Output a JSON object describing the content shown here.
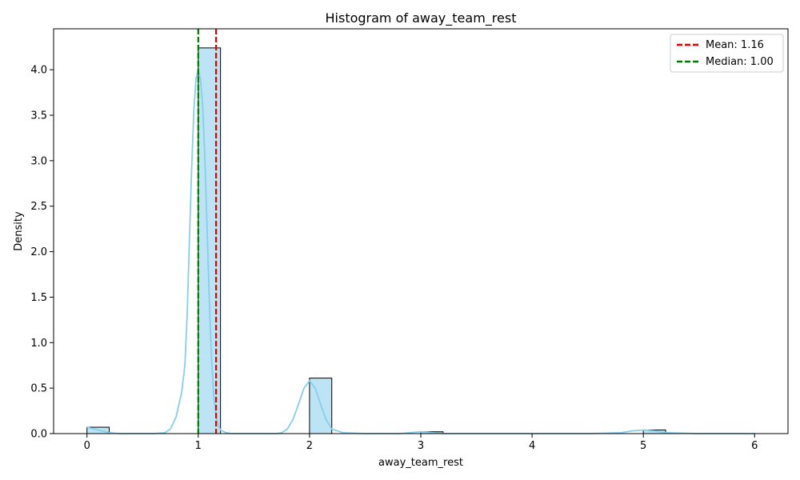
{
  "chart_data": {
    "type": "bar",
    "title": "Histogram of away_team_rest",
    "xlabel": "away_team_rest",
    "ylabel": "Density",
    "xlim": [
      -0.3,
      6.3
    ],
    "ylim": [
      0,
      4.45
    ],
    "xticks": [
      0,
      1,
      2,
      3,
      4,
      5,
      6
    ],
    "xtick_labels": [
      "0",
      "1",
      "2",
      "3",
      "4",
      "5",
      "6"
    ],
    "yticks": [
      0,
      0.5,
      1.0,
      1.5,
      2.0,
      2.5,
      3.0,
      3.5,
      4.0
    ],
    "ytick_labels": [
      "0.0",
      "0.5",
      "1.0",
      "1.5",
      "2.0",
      "2.5",
      "3.0",
      "3.5",
      "4.0"
    ],
    "grid": false,
    "legend_position": "top-right",
    "bars": [
      {
        "x0": 0.0,
        "x1": 0.2,
        "value": 0.07
      },
      {
        "x0": 1.0,
        "x1": 1.2,
        "value": 4.24
      },
      {
        "x0": 2.0,
        "x1": 2.2,
        "value": 0.61
      },
      {
        "x0": 3.0,
        "x1": 3.2,
        "value": 0.02
      },
      {
        "x0": 5.0,
        "x1": 5.2,
        "value": 0.04
      }
    ],
    "kde": {
      "x": [
        0,
        0.1,
        0.2,
        0.3,
        0.5,
        0.6,
        0.7,
        0.75,
        0.8,
        0.85,
        0.88,
        0.9,
        0.92,
        0.94,
        0.96,
        0.98,
        1.0,
        1.02,
        1.04,
        1.06,
        1.08,
        1.1,
        1.12,
        1.14,
        1.16,
        1.18,
        1.2,
        1.25,
        1.3,
        1.5,
        1.7,
        1.75,
        1.8,
        1.85,
        1.9,
        1.95,
        2.0,
        2.05,
        2.1,
        2.15,
        2.2,
        2.3,
        2.5,
        2.8,
        2.9,
        3.0,
        3.1,
        3.2,
        3.5,
        4.0,
        4.5,
        4.8,
        4.9,
        5.0,
        5.1,
        5.2,
        5.5,
        6.0
      ],
      "y": [
        0.07,
        0.04,
        0.01,
        0.0,
        0.0,
        0.0,
        0.01,
        0.05,
        0.18,
        0.45,
        0.75,
        1.3,
        2.1,
        2.9,
        3.55,
        3.9,
        4.0,
        3.9,
        3.6,
        3.0,
        2.25,
        1.45,
        0.8,
        0.4,
        0.2,
        0.09,
        0.04,
        0.01,
        0.0,
        0.0,
        0.0,
        0.01,
        0.05,
        0.15,
        0.32,
        0.5,
        0.58,
        0.5,
        0.32,
        0.15,
        0.05,
        0.01,
        0.0,
        0.0,
        0.01,
        0.02,
        0.01,
        0.0,
        0.0,
        0.0,
        0.0,
        0.01,
        0.03,
        0.04,
        0.03,
        0.01,
        0.0,
        0.0
      ]
    },
    "reference_lines": [
      {
        "label": "Mean: 1.16",
        "x": 1.16,
        "color": "#e60000",
        "style": "dashed"
      },
      {
        "label": "Median: 1.00",
        "x": 1.0,
        "color": "#007800",
        "style": "dashed"
      }
    ],
    "colors": {
      "bar_fill": "#87ceeb",
      "bar_fill_opacity": 0.55,
      "bar_edge": "#000000",
      "kde_line": "#87ceeb"
    }
  }
}
